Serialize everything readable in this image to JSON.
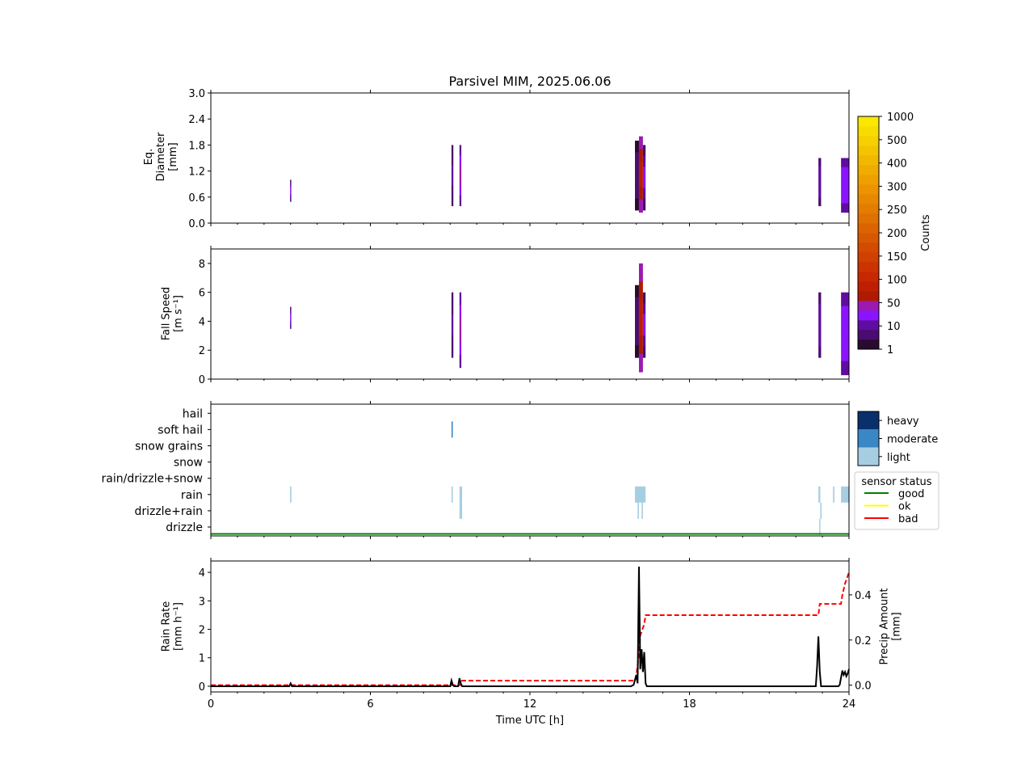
{
  "title": "Parsivel MIM, 2025.06.06",
  "chart_data": [
    {
      "panel": "diameter",
      "type": "heatmap",
      "ylabel": [
        "Eq.",
        "Diameter",
        "[mm]"
      ],
      "ylim": [
        0,
        3.0
      ],
      "yticks": [
        "0.0",
        "0.6",
        "1.2",
        "1.8",
        "2.4",
        "3.0"
      ],
      "xlim": [
        0,
        24
      ],
      "columns": [
        {
          "t0": 2.98,
          "t1": 3.02,
          "d0": 0.5,
          "d1": 1.0,
          "count": 10
        },
        {
          "t0": 9.05,
          "t1": 9.12,
          "d0": 0.4,
          "d1": 1.8,
          "count": 5
        },
        {
          "t0": 9.35,
          "t1": 9.42,
          "d0": 0.4,
          "d1": 1.8,
          "count": 20
        },
        {
          "t0": 15.95,
          "t1": 16.1,
          "d0": 0.3,
          "d1": 1.9,
          "count": 3
        },
        {
          "t0": 16.1,
          "t1": 16.25,
          "d0": 0.25,
          "d1": 2.0,
          "count": 60
        },
        {
          "t0": 16.25,
          "t1": 16.35,
          "d0": 0.3,
          "d1": 1.8,
          "count": 10
        },
        {
          "t0": 22.85,
          "t1": 22.95,
          "d0": 0.4,
          "d1": 1.5,
          "count": 8
        },
        {
          "t0": 23.7,
          "t1": 24.0,
          "d0": 0.25,
          "d1": 1.5,
          "count": 12
        }
      ]
    },
    {
      "panel": "fall_speed",
      "type": "heatmap",
      "ylabel": [
        "Fall Speed",
        "[m s⁻¹]"
      ],
      "ylim": [
        0,
        9
      ],
      "yticks": [
        "0",
        "2",
        "4",
        "6",
        "8"
      ],
      "xlim": [
        0,
        24
      ],
      "columns": [
        {
          "t0": 2.98,
          "t1": 3.02,
          "v0": 3.5,
          "v1": 5.0,
          "count": 10
        },
        {
          "t0": 9.05,
          "t1": 9.12,
          "v0": 1.5,
          "v1": 6.0,
          "count": 5
        },
        {
          "t0": 9.35,
          "t1": 9.42,
          "v0": 0.8,
          "v1": 6.0,
          "count": 20
        },
        {
          "t0": 15.95,
          "t1": 16.1,
          "v0": 1.5,
          "v1": 6.5,
          "count": 3
        },
        {
          "t0": 16.1,
          "t1": 16.25,
          "v0": 0.5,
          "v1": 8.0,
          "count": 60
        },
        {
          "t0": 16.25,
          "t1": 16.35,
          "v0": 1.5,
          "v1": 6.0,
          "count": 10
        },
        {
          "t0": 22.85,
          "t1": 22.95,
          "v0": 1.5,
          "v1": 6.0,
          "count": 8
        },
        {
          "t0": 23.7,
          "t1": 24.0,
          "v0": 0.3,
          "v1": 6.0,
          "count": 12
        }
      ]
    },
    {
      "panel": "precip_type",
      "type": "heatmap",
      "categories": [
        "drizzle",
        "drizzle+rain",
        "rain",
        "rain/drizzle+snow",
        "snow",
        "snow grains",
        "soft hail",
        "hail"
      ],
      "xlim": [
        0,
        24
      ],
      "events": [
        {
          "t0": 2.98,
          "t1": 3.03,
          "cat": "rain",
          "intensity": "light"
        },
        {
          "t0": 9.05,
          "t1": 9.1,
          "cat": "rain",
          "intensity": "light"
        },
        {
          "t0": 9.05,
          "t1": 9.1,
          "cat": "soft hail",
          "intensity": "moderate"
        },
        {
          "t0": 9.35,
          "t1": 9.45,
          "cat": "rain",
          "intensity": "light"
        },
        {
          "t0": 9.35,
          "t1": 9.45,
          "cat": "drizzle+rain",
          "intensity": "light"
        },
        {
          "t0": 15.95,
          "t1": 16.35,
          "cat": "rain",
          "intensity": "light"
        },
        {
          "t0": 16.05,
          "t1": 16.1,
          "cat": "drizzle+rain",
          "intensity": "light"
        },
        {
          "t0": 16.2,
          "t1": 16.25,
          "cat": "drizzle+rain",
          "intensity": "light"
        },
        {
          "t0": 22.85,
          "t1": 22.92,
          "cat": "rain",
          "intensity": "light"
        },
        {
          "t0": 22.92,
          "t1": 22.97,
          "cat": "drizzle+rain",
          "intensity": "light"
        },
        {
          "t0": 22.88,
          "t1": 22.92,
          "cat": "drizzle",
          "intensity": "light"
        },
        {
          "t0": 23.4,
          "t1": 23.45,
          "cat": "rain",
          "intensity": "light"
        },
        {
          "t0": 23.7,
          "t1": 24.0,
          "cat": "rain",
          "intensity": "light"
        }
      ],
      "intensity_legend": [
        "heavy",
        "moderate",
        "light"
      ],
      "sensor_status": {
        "title": "sensor status",
        "series": [
          "good",
          "ok",
          "bad"
        ],
        "value": "good"
      }
    },
    {
      "panel": "rain",
      "type": "line",
      "ylabel": [
        "Rain Rate",
        "[mm h⁻¹]"
      ],
      "y2label": [
        "Precip Amount",
        "[mm]"
      ],
      "xlabel": "Time UTC [h]",
      "xlim": [
        0,
        24
      ],
      "xticks": [
        "0",
        "6",
        "12",
        "18",
        "24"
      ],
      "ylim": [
        -0.2,
        4.4
      ],
      "yticks": [
        "0",
        "1",
        "2",
        "3",
        "4"
      ],
      "y2lim": [
        -0.03,
        0.55
      ],
      "y2ticks": [
        "0.0",
        "0.2",
        "0.4"
      ],
      "rain_rate": {
        "x": [
          0,
          2.95,
          3.0,
          3.05,
          9.0,
          9.05,
          9.1,
          9.15,
          9.3,
          9.35,
          9.4,
          9.45,
          15.8,
          15.9,
          16.0,
          16.05,
          16.1,
          16.15,
          16.2,
          16.25,
          16.3,
          16.35,
          16.4,
          22.75,
          22.8,
          22.85,
          22.9,
          22.95,
          23.6,
          23.65,
          23.7,
          23.75,
          23.8,
          23.85,
          23.9,
          23.95,
          24.0
        ],
        "y": [
          0,
          0,
          0.1,
          0,
          0,
          0.2,
          0.05,
          0,
          0,
          0.28,
          0.1,
          0,
          0,
          0.05,
          0.4,
          0.1,
          4.2,
          0.6,
          1.3,
          0.5,
          1.2,
          0.1,
          0,
          0,
          0.7,
          1.75,
          0.5,
          0,
          0,
          0.05,
          0.3,
          0.55,
          0.4,
          0.5,
          0.35,
          0.45,
          0.6
        ]
      },
      "precip_amount": {
        "x": [
          0,
          9.38,
          9.4,
          15.95,
          16.0,
          16.1,
          16.15,
          16.3,
          16.35,
          22.85,
          22.9,
          23.7,
          23.75,
          23.85,
          24.0
        ],
        "y": [
          0,
          0,
          0.02,
          0.02,
          0.04,
          0.14,
          0.22,
          0.27,
          0.31,
          0.31,
          0.36,
          0.36,
          0.4,
          0.45,
          0.5
        ]
      }
    }
  ],
  "colorbar": {
    "label": "Counts",
    "ticks": [
      "1",
      "10",
      "50",
      "100",
      "150",
      "200",
      "250",
      "300",
      "400",
      "500",
      "1000"
    ],
    "colors": [
      "#2a0a2e",
      "#4a0d6e",
      "#5f0da0",
      "#8a14ff",
      "#9b1ab0",
      "#b01a00",
      "#bf1e00",
      "#c82800",
      "#cc3300",
      "#d04000",
      "#d44a00",
      "#d85800",
      "#dc6400",
      "#e07000",
      "#e47c00",
      "#e88800",
      "#ec9400",
      "#eea000",
      "#f0ac00",
      "#f2b800",
      "#f4c400",
      "#f6d000",
      "#f8dc00",
      "#fae800"
    ]
  },
  "palette": {
    "light": "#a6cee3",
    "moderate": "#3a87c6",
    "heavy": "#08306b",
    "good": "#008000",
    "ok": "#ffff00",
    "bad": "#ff0000",
    "rain_rate": "#000000",
    "precip_amount": "#ff0000"
  }
}
